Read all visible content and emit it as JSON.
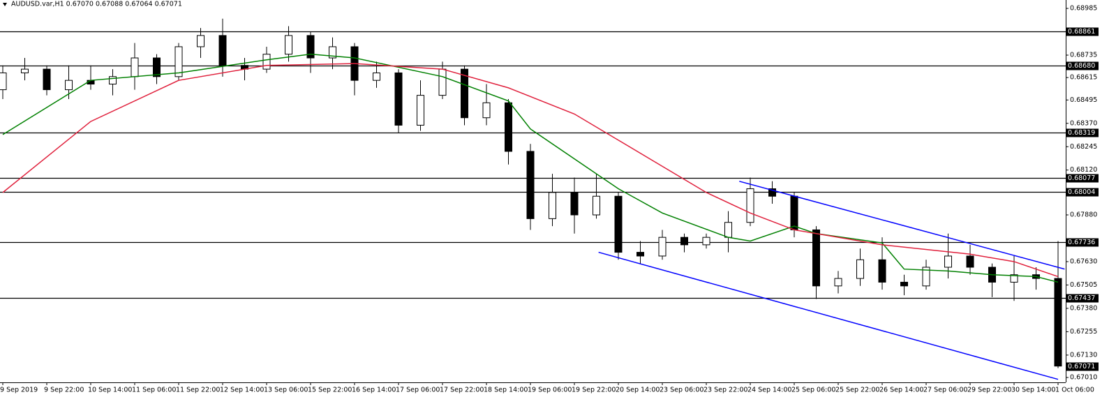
{
  "chart_data": {
    "type": "candlestick",
    "title": "AUDUSD.var,H1  0.67070 0.67088 0.67064 0.67071",
    "categories": [
      "9 Sep 2019",
      null,
      "9 Sep 22:00",
      null,
      "10 Sep 14:00",
      null,
      "11 Sep 06:00",
      null,
      "11 Sep 22:00",
      null,
      "12 Sep 14:00",
      null,
      "13 Sep 06:00",
      null,
      "15 Sep 22:00",
      null,
      "16 Sep 14:00",
      null,
      "17 Sep 06:00",
      null,
      "17 Sep 22:00",
      null,
      "18 Sep 14:00",
      null,
      "19 Sep 06:00",
      null,
      "19 Sep 22:00",
      null,
      "20 Sep 14:00",
      null,
      "23 Sep 06:00",
      null,
      "23 Sep 22:00",
      null,
      "24 Sep 14:00",
      null,
      "25 Sep 06:00",
      null,
      "25 Sep 22:00",
      null,
      "26 Sep 14:00",
      null,
      "27 Sep 06:00",
      null,
      "29 Sep 22:00",
      null,
      "30 Sep 14:00",
      null,
      "1 Oct 06:00"
    ],
    "open": [
      0.6855,
      0.6864,
      0.6866,
      0.6855,
      0.686,
      0.6858,
      0.6862,
      0.6872,
      0.6862,
      0.6878,
      0.6884,
      0.6868,
      0.6866,
      0.6874,
      0.6884,
      0.6872,
      0.6878,
      0.686,
      0.6864,
      0.6836,
      0.6852,
      0.6866,
      0.684,
      0.6848,
      0.6822,
      0.6786,
      0.68,
      0.6788,
      0.6798,
      0.6768,
      0.6766,
      0.6776,
      0.6772,
      0.6776,
      0.6784,
      0.6802,
      0.6798,
      0.678,
      0.675,
      0.6754,
      0.6764,
      0.6752,
      0.675,
      0.676,
      0.6766,
      0.676,
      0.6752,
      0.6756,
      0.6754
    ],
    "high": [
      0.6868,
      0.6872,
      0.6868,
      0.6868,
      0.6868,
      0.6866,
      0.688,
      0.6874,
      0.688,
      0.6888,
      0.6893,
      0.6872,
      0.6878,
      0.6889,
      0.6886,
      0.6883,
      0.688,
      0.687,
      0.6866,
      0.686,
      0.687,
      0.6868,
      0.6858,
      0.685,
      0.6826,
      0.681,
      0.6808,
      0.681,
      0.68,
      0.6774,
      0.678,
      0.6778,
      0.6778,
      0.679,
      0.6808,
      0.6806,
      0.68,
      0.6782,
      0.6758,
      0.677,
      0.6776,
      0.6756,
      0.6764,
      0.6778,
      0.6772,
      0.6762,
      0.6766,
      0.676,
      0.6774
    ],
    "low": [
      0.685,
      0.686,
      0.6852,
      0.685,
      0.6855,
      0.6852,
      0.6855,
      0.6858,
      0.686,
      0.6872,
      0.6862,
      0.686,
      0.6864,
      0.687,
      0.6864,
      0.6866,
      0.6852,
      0.6856,
      0.6832,
      0.6833,
      0.685,
      0.6836,
      0.6836,
      0.6815,
      0.678,
      0.6782,
      0.6778,
      0.6786,
      0.6764,
      0.6762,
      0.6764,
      0.6768,
      0.677,
      0.6768,
      0.6782,
      0.6794,
      0.6776,
      0.6743,
      0.6746,
      0.675,
      0.6748,
      0.6745,
      0.6748,
      0.6754,
      0.6756,
      0.6744,
      0.6742,
      0.6748,
      0.6706
    ],
    "close": [
      0.6864,
      0.6866,
      0.6855,
      0.686,
      0.6858,
      0.6862,
      0.6872,
      0.6862,
      0.6878,
      0.6884,
      0.6868,
      0.6866,
      0.6874,
      0.6884,
      0.6872,
      0.6878,
      0.686,
      0.6864,
      0.6836,
      0.6852,
      0.6866,
      0.684,
      0.6848,
      0.6822,
      0.6786,
      0.68,
      0.6788,
      0.6798,
      0.6768,
      0.6766,
      0.6776,
      0.6772,
      0.6776,
      0.6784,
      0.6802,
      0.6798,
      0.678,
      0.675,
      0.6754,
      0.6764,
      0.6752,
      0.675,
      0.676,
      0.6766,
      0.676,
      0.6752,
      0.6756,
      0.6754,
      0.67071
    ],
    "up_color": "#ffffff",
    "down_color": "#000000",
    "wick_color": "#000000",
    "moving_averages": [
      {
        "color": "#008000",
        "x": [
          0,
          4,
          8,
          12,
          14,
          16,
          20,
          23,
          24,
          27,
          28,
          30,
          33,
          34,
          36,
          37,
          40,
          41,
          43,
          45,
          47,
          48
        ],
        "values": [
          0.6831,
          0.686,
          0.6864,
          0.6871,
          0.6874,
          0.6872,
          0.6862,
          0.6849,
          0.6834,
          0.681,
          0.6802,
          0.6789,
          0.6776,
          0.6774,
          0.6782,
          0.6778,
          0.6773,
          0.6759,
          0.6758,
          0.6756,
          0.6755,
          0.6752
        ]
      },
      {
        "color": "#e0203c",
        "x": [
          0,
          4,
          8,
          12,
          16,
          20,
          23,
          26,
          28,
          30,
          32,
          34,
          36,
          38,
          40,
          44,
          46,
          48
        ],
        "values": [
          0.68,
          0.6838,
          0.686,
          0.6868,
          0.6869,
          0.6866,
          0.6856,
          0.6842,
          0.6828,
          0.6814,
          0.68,
          0.6789,
          0.678,
          0.6776,
          0.6772,
          0.6767,
          0.6763,
          0.6755
        ]
      }
    ],
    "trendlines": [
      {
        "color": "#0000ff",
        "x": [
          33.5,
          48.3
        ],
        "values": [
          0.6806,
          0.6759
        ]
      },
      {
        "color": "#0000ff",
        "x": [
          27.1,
          48
        ],
        "values": [
          0.6768,
          0.67
        ]
      }
    ],
    "levels": [
      0.68861,
      {
        "value": 0.6868,
        "label": "0.68680"
      },
      0.68319,
      0.68077,
      0.68004,
      0.67736,
      0.67437
    ],
    "last_price": 0.67071,
    "ylim": [
      0.66984,
      0.6903
    ],
    "yticks": [
      0.68985,
      0.68735,
      0.68615,
      0.68495,
      {
        "value": 0.6837,
        "label": "0.68370"
      },
      0.68245,
      {
        "value": 0.6812,
        "label": "0.68120"
      },
      {
        "value": 0.6788,
        "label": "0.67880"
      },
      {
        "value": 0.6763,
        "label": "0.67630"
      },
      0.67505,
      {
        "value": 0.6738,
        "label": "0.67380"
      },
      0.67255,
      {
        "value": 0.6713,
        "label": "0.67130"
      },
      {
        "value": 0.6701,
        "label": "0.67010"
      }
    ]
  }
}
